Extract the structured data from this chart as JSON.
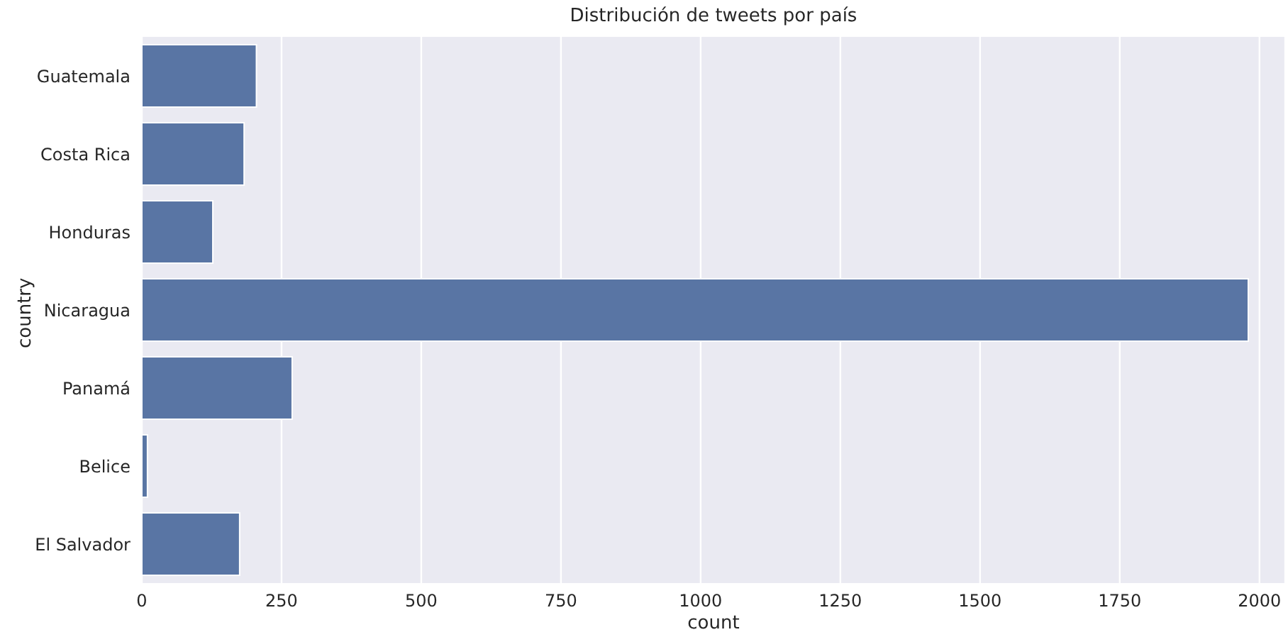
{
  "chart_data": {
    "type": "bar",
    "orientation": "horizontal",
    "title": "Distribución de tweets por país",
    "xlabel": "count",
    "ylabel": "country",
    "categories": [
      "Guatemala",
      "Costa Rica",
      "Honduras",
      "Nicaragua",
      "Panamá",
      "Belice",
      "El Salvador"
    ],
    "values": [
      205,
      183,
      127,
      1980,
      269,
      10,
      175
    ],
    "color": "#5975a4",
    "xlim": [
      0,
      2046
    ],
    "xticks": [
      0,
      250,
      500,
      750,
      1000,
      1250,
      1500,
      1750,
      2000
    ],
    "grid": "x"
  }
}
